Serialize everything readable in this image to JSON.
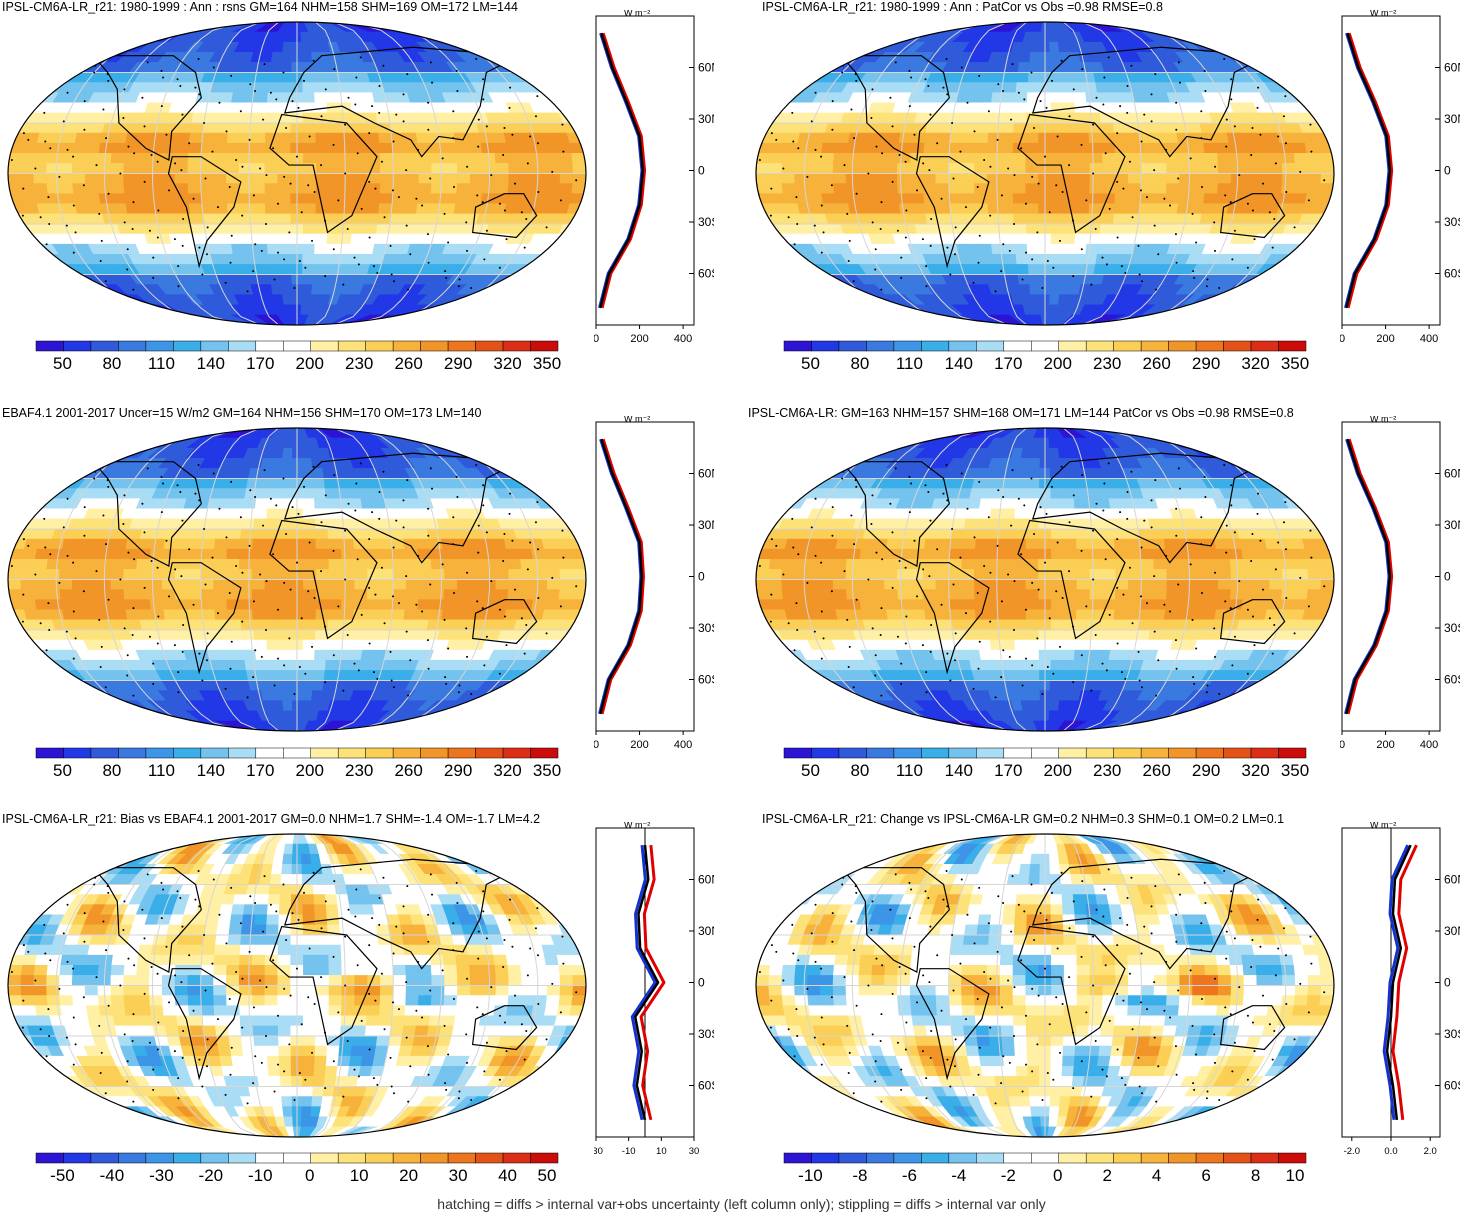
{
  "panels": [
    {
      "title": "IPSL-CM6A-LR_r21: 1980-1999 : Ann : rsns GM=164 NHM=158 SHM=169 OM=172 LM=144",
      "colorbar_labels": [
        "50",
        "80",
        "110",
        "140",
        "170",
        "200",
        "230",
        "260",
        "290",
        "320",
        "350"
      ],
      "zonal_ticks": [
        "0",
        "200",
        "400"
      ]
    },
    {
      "title": "IPSL-CM6A-LR_r21: 1980-1999 : Ann : PatCor vs Obs =0.98 RMSE=0.8",
      "colorbar_labels": [
        "50",
        "80",
        "110",
        "140",
        "170",
        "200",
        "230",
        "260",
        "290",
        "320",
        "350"
      ],
      "zonal_ticks": [
        "0",
        "200",
        "400"
      ]
    },
    {
      "title": "EBAF4.1 2001-2017 Uncer=15 W/m2 GM=164 NHM=156 SHM=170 OM=173 LM=140",
      "colorbar_labels": [
        "50",
        "80",
        "110",
        "140",
        "170",
        "200",
        "230",
        "260",
        "290",
        "320",
        "350"
      ],
      "zonal_ticks": [
        "0",
        "200",
        "400"
      ]
    },
    {
      "title": "IPSL-CM6A-LR: GM=163 NHM=157 SHM=168 OM=171 LM=144 PatCor vs Obs =0.98 RMSE=0.8",
      "colorbar_labels": [
        "50",
        "80",
        "110",
        "140",
        "170",
        "200",
        "230",
        "260",
        "290",
        "320",
        "350"
      ],
      "zonal_ticks": [
        "0",
        "200",
        "400"
      ]
    },
    {
      "title": "IPSL-CM6A-LR_r21: Bias vs EBAF4.1 2001-2017 GM=0.0 NHM=1.7 SHM=-1.4 OM=-1.7 LM=4.2",
      "colorbar_labels": [
        "-50",
        "-40",
        "-30",
        "-20",
        "-10",
        "0",
        "10",
        "20",
        "30",
        "40",
        "50"
      ],
      "zonal_ticks": [
        "-30",
        "-10",
        "10",
        "30"
      ]
    },
    {
      "title": "IPSL-CM6A-LR_r21: Change vs IPSL-CM6A-LR GM=0.2 NHM=0.3 SHM=0.1 OM=0.2 LM=0.1",
      "colorbar_labels": [
        "-10",
        "-8",
        "-6",
        "-4",
        "-2",
        "0",
        "2",
        "4",
        "6",
        "8",
        "10"
      ],
      "zonal_ticks": [
        "-2.0",
        "0.0",
        "2.0"
      ]
    }
  ],
  "zonal_unit": "W m⁻²",
  "lat_ticks": [
    "60N",
    "30N",
    "0",
    "30S",
    "60S"
  ],
  "colors": {
    "colormap": [
      "#2d14d4",
      "#2238e6",
      "#2f5bdb",
      "#3a79df",
      "#3d95e7",
      "#39aee9",
      "#74c3ee",
      "#a9dcf5",
      "#ffffff",
      "#ffffff",
      "#fff0a5",
      "#fde27a",
      "#fbcf55",
      "#f6b23a",
      "#f19528",
      "#ec751e",
      "#e45218",
      "#dc2e16",
      "#cc0b0b"
    ],
    "land_outline": "#000000",
    "graticule": "#d6d6d6",
    "line_model": "#e00000",
    "line_obs": "#1432d2",
    "line_mean": "#000000"
  },
  "footer": "hatching = diffs > internal var+obs uncertainty (left column only); stippling = diffs > internal var only",
  "chart_data": [
    {
      "type": "heatmap",
      "title": "IPSL-CM6A-LR_r21: 1980-1999 : Ann : rsns GM=164 NHM=158 SHM=169 OM=172 LM=144",
      "colorbar": [
        50,
        80,
        110,
        140,
        170,
        200,
        230,
        260,
        290,
        320,
        350
      ],
      "zonal_xlim": [
        0,
        450
      ],
      "zonal_lat": [
        80,
        60,
        40,
        20,
        0,
        -20,
        -40,
        -60,
        -80
      ],
      "zonal_mean": [
        25,
        75,
        140,
        200,
        215,
        200,
        150,
        60,
        20
      ]
    },
    {
      "type": "heatmap",
      "title": "IPSL-CM6A-LR_r21: 1980-1999 : Ann : PatCor vs Obs =0.98 RMSE=0.8",
      "colorbar": [
        50,
        80,
        110,
        140,
        170,
        200,
        230,
        260,
        290,
        320,
        350
      ],
      "zonal_xlim": [
        0,
        450
      ],
      "zonal_lat": [
        80,
        60,
        40,
        20,
        0,
        -20,
        -40,
        -60,
        -80
      ],
      "zonal_mean": [
        25,
        75,
        145,
        205,
        220,
        205,
        150,
        60,
        20
      ]
    },
    {
      "type": "heatmap",
      "title": "EBAF4.1 2001-2017 Uncer=15 W/m2 GM=164 NHM=156 SHM=170 OM=173 LM=140",
      "colorbar": [
        50,
        80,
        110,
        140,
        170,
        200,
        230,
        260,
        290,
        320,
        350
      ],
      "zonal_xlim": [
        0,
        450
      ],
      "zonal_lat": [
        80,
        60,
        40,
        20,
        0,
        -20,
        -40,
        -60,
        -80
      ],
      "zonal_mean": [
        25,
        75,
        140,
        200,
        210,
        200,
        150,
        60,
        20
      ]
    },
    {
      "type": "heatmap",
      "title": "IPSL-CM6A-LR: GM=163 NHM=157 SHM=168 OM=171 LM=144 PatCor vs Obs =0.98 RMSE=0.8",
      "colorbar": [
        50,
        80,
        110,
        140,
        170,
        200,
        230,
        260,
        290,
        320,
        350
      ],
      "zonal_xlim": [
        0,
        450
      ],
      "zonal_lat": [
        80,
        60,
        40,
        20,
        0,
        -20,
        -40,
        -60,
        -80
      ],
      "zonal_mean": [
        25,
        75,
        145,
        205,
        220,
        205,
        150,
        60,
        20
      ]
    },
    {
      "type": "heatmap",
      "title": "IPSL-CM6A-LR_r21: Bias vs EBAF4.1 2001-2017 GM=0.0 NHM=1.7 SHM=-1.4 OM=-1.7 LM=4.2",
      "colorbar": [
        -50,
        -40,
        -30,
        -20,
        -10,
        0,
        10,
        20,
        30,
        40,
        50
      ],
      "zonal_xlim": [
        -30,
        30
      ],
      "zonal_lat": [
        80,
        60,
        40,
        20,
        0,
        -20,
        -40,
        -60,
        -80
      ],
      "zonal_mean": [
        0,
        2,
        -4,
        -3,
        8,
        -6,
        -2,
        -5,
        0
      ]
    },
    {
      "type": "heatmap",
      "title": "IPSL-CM6A-LR_r21: Change vs IPSL-CM6A-LR GM=0.2 NHM=0.3 SHM=0.1 OM=0.2 LM=0.1",
      "colorbar": [
        -10,
        -8,
        -6,
        -4,
        -2,
        0,
        2,
        4,
        6,
        8,
        10
      ],
      "zonal_xlim": [
        -2.5,
        2.5
      ],
      "zonal_lat": [
        80,
        60,
        40,
        20,
        0,
        -20,
        -40,
        -60,
        -80
      ],
      "zonal_mean": [
        1.0,
        0.2,
        0.1,
        0.5,
        0.1,
        0.0,
        -0.2,
        0.1,
        0.3
      ]
    }
  ]
}
